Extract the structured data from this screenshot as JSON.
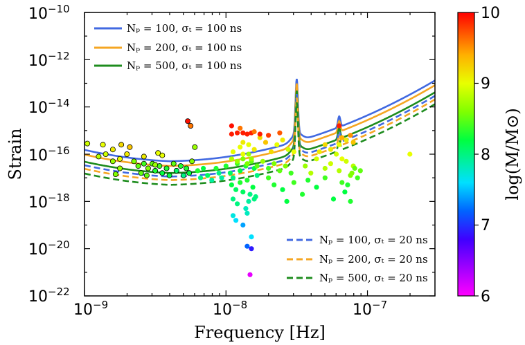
{
  "chart_data": {
    "type": "scatter",
    "xlabel": "Frequency [Hz]",
    "ylabel": "Strain",
    "xscale": "log",
    "yscale": "log",
    "xlim": [
      1e-09,
      3e-07
    ],
    "ylim": [
      1e-22,
      1e-10
    ],
    "x_tick_labels": [
      {
        "base": "10",
        "exp": "−9",
        "value": 1e-09
      },
      {
        "base": "10",
        "exp": "−8",
        "value": 1e-08
      },
      {
        "base": "10",
        "exp": "−7",
        "value": 1e-07
      }
    ],
    "y_tick_labels": [
      {
        "base": "10",
        "exp": "−22",
        "value": 1e-22
      },
      {
        "base": "10",
        "exp": "−20",
        "value": 1e-20
      },
      {
        "base": "10",
        "exp": "−18",
        "value": 1e-18
      },
      {
        "base": "10",
        "exp": "−16",
        "value": 1e-16
      },
      {
        "base": "10",
        "exp": "−14",
        "value": 1e-14
      },
      {
        "base": "10",
        "exp": "−12",
        "value": 1e-12
      },
      {
        "base": "10",
        "exp": "−10",
        "value": 1e-10
      }
    ],
    "colorbar": {
      "label": "log(M/M⊙)",
      "min": 6,
      "max": 10,
      "tick_labels": [
        "6",
        "7",
        "8",
        "9",
        "10"
      ]
    },
    "legend_upper": {
      "placement": "upper-left",
      "entries": [
        {
          "text": "Nₚ = 100, σₜ = 100 ns",
          "color": "#4169e1",
          "style": "solid"
        },
        {
          "text": "Nₚ = 200, σₜ = 100 ns",
          "color": "#f5a623",
          "style": "solid"
        },
        {
          "text": "Nₚ = 500, σₜ = 100 ns",
          "color": "#1e8c1e",
          "style": "solid"
        }
      ]
    },
    "legend_lower": {
      "placement": "lower-right",
      "entries": [
        {
          "text": "Nₚ = 100, σₜ = 20 ns",
          "color": "#4169e1",
          "style": "dashed"
        },
        {
          "text": "Nₚ = 200, σₜ = 20 ns",
          "color": "#f5a623",
          "style": "dashed"
        },
        {
          "text": "Nₚ = 500, σₜ = 20 ns",
          "color": "#1e8c1e",
          "style": "dashed"
        }
      ]
    },
    "curves": [
      {
        "name": "Nₚ = 100, σₜ = 100 ns",
        "color": "#4169e1",
        "dashed": false,
        "log_min": -16.3
      },
      {
        "name": "Nₚ = 200, σₜ = 100 ns",
        "color": "#f5a623",
        "dashed": false,
        "log_min": -16.5
      },
      {
        "name": "Nₚ = 500, σₜ = 100 ns",
        "color": "#1e8c1e",
        "dashed": false,
        "log_min": -16.8
      },
      {
        "name": "Nₚ = 100, σₜ = 20 ns",
        "color": "#4169e1",
        "dashed": true,
        "log_min": -16.95
      },
      {
        "name": "Nₚ = 200, σₜ = 20 ns",
        "color": "#f5a623",
        "dashed": true,
        "log_min": -17.1
      },
      {
        "name": "Nₚ = 500, σₜ = 20 ns",
        "color": "#1e8c1e",
        "dashed": true,
        "log_min": -17.3
      }
    ],
    "points_log": [
      [
        -8.98,
        -15.55,
        8.9
      ],
      [
        -8.87,
        -15.6,
        9.0
      ],
      [
        -8.8,
        -15.8,
        9.1
      ],
      [
        -8.74,
        -15.6,
        9.2
      ],
      [
        -8.68,
        -15.7,
        9.3
      ],
      [
        -8.85,
        -16.0,
        8.9
      ],
      [
        -8.9,
        -16.1,
        8.8
      ],
      [
        -8.8,
        -16.3,
        8.7
      ],
      [
        -8.75,
        -16.2,
        9.0
      ],
      [
        -8.7,
        -16.0,
        9.1
      ],
      [
        -8.65,
        -16.3,
        8.6
      ],
      [
        -8.62,
        -16.5,
        8.5
      ],
      [
        -8.58,
        -16.4,
        8.4
      ],
      [
        -8.55,
        -16.6,
        8.6
      ],
      [
        -8.52,
        -16.4,
        8.5
      ],
      [
        -8.5,
        -16.7,
        8.3
      ],
      [
        -8.47,
        -16.5,
        8.4
      ],
      [
        -8.45,
        -16.8,
        8.2
      ],
      [
        -8.42,
        -16.6,
        8.3
      ],
      [
        -8.4,
        -16.9,
        8.2
      ],
      [
        -8.37,
        -16.4,
        8.5
      ],
      [
        -8.35,
        -16.7,
        8.1
      ],
      [
        -8.32,
        -16.5,
        8.3
      ],
      [
        -8.3,
        -16.9,
        8.0
      ],
      [
        -8.28,
        -16.6,
        8.3
      ],
      [
        -8.26,
        -16.8,
        8.2
      ],
      [
        -8.24,
        -16.3,
        8.6
      ],
      [
        -8.22,
        -15.7,
        8.7
      ],
      [
        -8.25,
        -14.8,
        9.6
      ],
      [
        -8.2,
        -16.7,
        8.3
      ],
      [
        -8.18,
        -17.0,
        8.0
      ],
      [
        -8.16,
        -16.6,
        8.2
      ],
      [
        -8.13,
        -16.9,
        8.1
      ],
      [
        -8.1,
        -17.1,
        7.9
      ],
      [
        -8.07,
        -16.6,
        8.3
      ],
      [
        -8.05,
        -16.8,
        8.0
      ],
      [
        -8.03,
        -17.0,
        7.9
      ],
      [
        -8.0,
        -16.5,
        8.3
      ],
      [
        -7.97,
        -16.8,
        8.1
      ],
      [
        -7.95,
        -17.0,
        8.0
      ],
      [
        -7.92,
        -16.4,
        8.4
      ],
      [
        -7.9,
        -16.7,
        8.2
      ],
      [
        -7.88,
        -16.2,
        8.6
      ],
      [
        -7.86,
        -16.5,
        8.3
      ],
      [
        -7.84,
        -16.0,
        8.7
      ],
      [
        -7.82,
        -16.3,
        8.5
      ],
      [
        -7.8,
        -16.6,
        8.2
      ],
      [
        -7.78,
        -16.9,
        8.0
      ],
      [
        -7.95,
        -15.9,
        9.0
      ],
      [
        -7.9,
        -15.7,
        9.0
      ],
      [
        -7.88,
        -15.5,
        9.1
      ],
      [
        -7.84,
        -15.6,
        9.0
      ],
      [
        -7.8,
        -15.8,
        9.1
      ],
      [
        -7.76,
        -15.3,
        9.2
      ],
      [
        -7.72,
        -15.5,
        9.3
      ],
      [
        -7.68,
        -15.9,
        9.2
      ],
      [
        -7.64,
        -15.6,
        9.0
      ],
      [
        -7.6,
        -15.4,
        9.1
      ],
      [
        -7.56,
        -15.8,
        8.9
      ],
      [
        -7.52,
        -15.9,
        9.0
      ],
      [
        -7.96,
        -15.15,
        9.9
      ],
      [
        -7.92,
        -15.1,
        9.9
      ],
      [
        -7.88,
        -15.1,
        9.9
      ],
      [
        -7.85,
        -15.15,
        9.9
      ],
      [
        -7.82,
        -15.1,
        9.9
      ],
      [
        -7.76,
        -15.15,
        9.9
      ],
      [
        -7.7,
        -15.2,
        9.8
      ],
      [
        -7.62,
        -15.1,
        9.7
      ],
      [
        -7.96,
        -14.8,
        9.95
      ],
      [
        -7.9,
        -14.9,
        9.6
      ],
      [
        -7.8,
        -15.05,
        9.6
      ],
      [
        -7.96,
        -16.2,
        8.8
      ],
      [
        -7.92,
        -16.3,
        8.7
      ],
      [
        -7.88,
        -16.0,
        9.0
      ],
      [
        -7.85,
        -16.4,
        8.6
      ],
      [
        -7.82,
        -16.2,
        8.7
      ],
      [
        -7.78,
        -16.5,
        8.5
      ],
      [
        -7.74,
        -16.3,
        8.7
      ],
      [
        -7.7,
        -16.6,
        8.4
      ],
      [
        -7.66,
        -16.4,
        8.6
      ],
      [
        -7.62,
        -16.7,
        8.5
      ],
      [
        -7.58,
        -16.5,
        8.6
      ],
      [
        -7.54,
        -16.8,
        8.4
      ],
      [
        -7.96,
        -17.3,
        8.2
      ],
      [
        -7.93,
        -17.5,
        8.1
      ],
      [
        -7.9,
        -17.2,
        8.3
      ],
      [
        -7.88,
        -17.6,
        8.1
      ],
      [
        -7.85,
        -17.1,
        8.3
      ],
      [
        -7.83,
        -17.7,
        8.0
      ],
      [
        -7.81,
        -17.4,
        8.2
      ],
      [
        -7.79,
        -17.8,
        8.0
      ],
      [
        -7.95,
        -17.9,
        8.0
      ],
      [
        -7.92,
        -18.1,
        8.0
      ],
      [
        -7.86,
        -18.3,
        7.8
      ],
      [
        -7.84,
        -18.0,
        7.9
      ],
      [
        -7.8,
        -17.9,
        8.0
      ],
      [
        -7.93,
        -18.8,
        7.6
      ],
      [
        -7.88,
        -19.0,
        7.4
      ],
      [
        -7.82,
        -19.5,
        7.6
      ],
      [
        -7.85,
        -18.5,
        7.8
      ],
      [
        -7.95,
        -18.6,
        7.7
      ],
      [
        -7.85,
        -19.9,
        7.2
      ],
      [
        -7.82,
        -20.0,
        6.9
      ],
      [
        -7.83,
        -21.1,
        6.1
      ],
      [
        -7.7,
        -17.0,
        8.4
      ],
      [
        -7.66,
        -17.3,
        8.3
      ],
      [
        -7.6,
        -17.5,
        8.2
      ],
      [
        -7.57,
        -18.0,
        8.2
      ],
      [
        -7.52,
        -17.2,
        8.4
      ],
      [
        -7.44,
        -16.5,
        8.7
      ],
      [
        -7.4,
        -16.8,
        8.8
      ],
      [
        -7.36,
        -16.2,
        8.9
      ],
      [
        -7.3,
        -16.6,
        8.8
      ],
      [
        -7.26,
        -16.4,
        8.9
      ],
      [
        -7.2,
        -16.7,
        8.8
      ],
      [
        -7.15,
        -16.3,
        8.9
      ],
      [
        -7.1,
        -16.5,
        8.8
      ],
      [
        -7.12,
        -16.9,
        8.6
      ],
      [
        -7.14,
        -17.3,
        8.3
      ],
      [
        -7.16,
        -17.6,
        8.2
      ],
      [
        -7.12,
        -18.0,
        8.3
      ],
      [
        -7.18,
        -16.2,
        9.0
      ],
      [
        -7.22,
        -16.0,
        8.9
      ],
      [
        -7.26,
        -15.8,
        9.1
      ],
      [
        -7.3,
        -15.6,
        9.2
      ],
      [
        -7.34,
        -15.9,
        9.1
      ],
      [
        -7.2,
        -15.6,
        9.0
      ],
      [
        -7.15,
        -15.4,
        9.1
      ],
      [
        -7.1,
        -15.5,
        9.3
      ],
      [
        -7.12,
        -15.2,
        9.5
      ],
      [
        -7.2,
        -14.8,
        9.9
      ],
      [
        -7.18,
        -15.3,
        9.4
      ],
      [
        -7.42,
        -17.1,
        8.3
      ],
      [
        -7.36,
        -17.4,
        8.2
      ],
      [
        -7.46,
        -17.7,
        8.3
      ],
      [
        -7.3,
        -17.0,
        8.4
      ],
      [
        -7.24,
        -17.9,
        8.2
      ],
      [
        -7.18,
        -17.2,
        8.4
      ],
      [
        -7.11,
        -16.8,
        8.6
      ],
      [
        -7.09,
        -16.6,
        8.5
      ],
      [
        -7.05,
        -16.7,
        8.5
      ],
      [
        -7.07,
        -17.0,
        8.4
      ],
      [
        -6.7,
        -16.0,
        9.0
      ],
      [
        -8.45,
        -16.05,
        9.0
      ],
      [
        -8.48,
        -15.95,
        9.0
      ],
      [
        -8.58,
        -16.1,
        9.1
      ],
      [
        -8.5,
        -16.45,
        8.7
      ],
      [
        -8.6,
        -16.8,
        8.5
      ],
      [
        -8.75,
        -16.6,
        8.7
      ],
      [
        -8.78,
        -16.85,
        8.6
      ],
      [
        -8.56,
        -16.9,
        8.5
      ],
      [
        -8.27,
        -14.6,
        9.95
      ]
    ]
  }
}
